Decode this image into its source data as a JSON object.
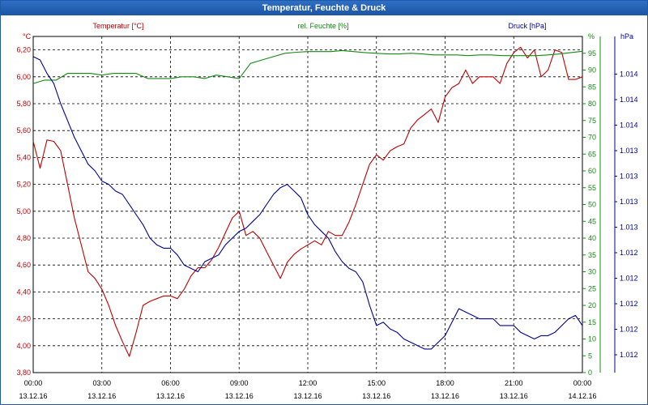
{
  "window": {
    "title": "Temperatur, Feuchte & Druck"
  },
  "colors": {
    "temp": "#c00000",
    "hum": "#138a13",
    "press": "#00009a",
    "title_bg": "#1b55a6",
    "axis": "#000000"
  },
  "chart_data": {
    "type": "line",
    "title": "Temperatur, Feuchte & Druck",
    "x_ticks": [
      {
        "time": "00:00",
        "date": "13.12.16"
      },
      {
        "time": "03:00",
        "date": "13.12.16"
      },
      {
        "time": "06:00",
        "date": "13.12.16"
      },
      {
        "time": "09:00",
        "date": "13.12.16"
      },
      {
        "time": "12:00",
        "date": "13.12.16"
      },
      {
        "time": "15:00",
        "date": "13.12.16"
      },
      {
        "time": "18:00",
        "date": "13.12.16"
      },
      {
        "time": "21:00",
        "date": "13.12.16"
      },
      {
        "time": "00:00",
        "date": "14.12.16"
      }
    ],
    "xlim_hours": [
      0,
      24
    ],
    "axes": {
      "temp": {
        "label": "Temperatur [°C]",
        "unit": "°C",
        "ylim": [
          3.8,
          6.3
        ],
        "ticks": [
          "3,80",
          "4,00",
          "4,20",
          "4,40",
          "4,60",
          "4,80",
          "5,00",
          "5,20",
          "5,40",
          "5,60",
          "5,80",
          "6,00",
          "6,20"
        ]
      },
      "hum": {
        "label": "rel. Feuchte [%]",
        "unit": "%",
        "ylim": [
          0,
          100
        ],
        "ticks": [
          "0",
          "5",
          "10",
          "15",
          "20",
          "25",
          "30",
          "35",
          "40",
          "45",
          "50",
          "55",
          "60",
          "65",
          "70",
          "75",
          "80",
          "85",
          "90",
          "95"
        ]
      },
      "press": {
        "label": "Druck [hPa]",
        "unit": "hPa",
        "ticks": [
          "1.012",
          "1.012",
          "1.012",
          "1.012",
          "1.012",
          "1.013",
          "1.013",
          "1.013",
          "1.013",
          "1.014",
          "1.014",
          "1.014"
        ]
      }
    },
    "series": [
      {
        "name": "Temperatur [°C]",
        "axis": "temp",
        "x": [
          0,
          0.3,
          0.6,
          0.9,
          1.2,
          1.5,
          1.8,
          2.1,
          2.4,
          2.7,
          3.0,
          3.3,
          3.6,
          3.9,
          4.2,
          4.5,
          4.8,
          5.1,
          5.4,
          5.7,
          6.0,
          6.3,
          6.6,
          6.9,
          7.2,
          7.5,
          7.8,
          8.1,
          8.4,
          8.7,
          9.0,
          9.3,
          9.6,
          9.9,
          10.2,
          10.5,
          10.8,
          11.1,
          11.4,
          11.7,
          12.0,
          12.3,
          12.6,
          12.9,
          13.2,
          13.5,
          13.8,
          14.1,
          14.4,
          14.7,
          15.0,
          15.3,
          15.6,
          15.9,
          16.2,
          16.5,
          16.8,
          17.1,
          17.4,
          17.7,
          18.0,
          18.3,
          18.6,
          18.9,
          19.2,
          19.5,
          19.8,
          20.1,
          20.4,
          20.7,
          21.0,
          21.3,
          21.6,
          21.9,
          22.2,
          22.5,
          22.8,
          23.1,
          23.4,
          23.7,
          24.0
        ],
        "values": [
          5.52,
          5.32,
          5.53,
          5.52,
          5.45,
          5.2,
          4.95,
          4.75,
          4.55,
          4.5,
          4.42,
          4.3,
          4.15,
          4.03,
          3.92,
          4.1,
          4.3,
          4.33,
          4.35,
          4.37,
          4.37,
          4.35,
          4.42,
          4.52,
          4.58,
          4.58,
          4.64,
          4.73,
          4.84,
          4.95,
          5.0,
          4.82,
          4.85,
          4.8,
          4.7,
          4.6,
          4.5,
          4.62,
          4.68,
          4.72,
          4.75,
          4.78,
          4.75,
          4.85,
          4.82,
          4.82,
          4.92,
          5.05,
          5.2,
          5.35,
          5.42,
          5.38,
          5.45,
          5.48,
          5.5,
          5.62,
          5.68,
          5.72,
          5.76,
          5.66,
          5.85,
          5.92,
          5.95,
          6.05,
          5.95,
          6.0,
          6.0,
          6.0,
          5.95,
          6.1,
          6.18,
          6.22,
          6.14,
          6.2,
          6.0,
          6.05,
          6.2,
          6.18,
          5.98,
          5.98,
          6.0
        ],
        "color_key": "temp"
      },
      {
        "name": "rel. Feuchte [%]",
        "axis": "hum",
        "x": [
          0,
          0.5,
          1.0,
          1.5,
          2.0,
          2.5,
          3.0,
          3.5,
          4.0,
          4.5,
          5.0,
          5.5,
          6.0,
          6.5,
          7.0,
          7.5,
          8.0,
          8.5,
          9.0,
          9.5,
          10.0,
          10.5,
          11.0,
          11.5,
          12.0,
          12.5,
          13.0,
          13.5,
          14.0,
          14.5,
          15.0,
          15.5,
          16.0,
          16.5,
          17.0,
          17.5,
          18.0,
          18.5,
          19.0,
          19.5,
          20.0,
          20.5,
          21.0,
          21.5,
          22.0,
          22.5,
          23.0,
          23.5,
          24.0
        ],
        "values": [
          86,
          87,
          87,
          89,
          89,
          89,
          88.5,
          89,
          89,
          89,
          87.5,
          87.5,
          87.5,
          88,
          88,
          87.5,
          88.5,
          88,
          87.5,
          92,
          93,
          94,
          95,
          95.3,
          95.5,
          95.5,
          95.5,
          95.8,
          95.5,
          95.2,
          95,
          94.8,
          94.8,
          95,
          94.8,
          94.5,
          94.5,
          94.5,
          94.3,
          94.5,
          94.5,
          94.3,
          94.3,
          94.3,
          94.3,
          94.5,
          94.8,
          95.2,
          95.6
        ],
        "color_key": "hum"
      },
      {
        "name": "Druck [hPa]",
        "axis": "press",
        "x": [
          0,
          0.3,
          0.6,
          0.9,
          1.2,
          1.5,
          1.8,
          2.1,
          2.4,
          2.7,
          3.0,
          3.3,
          3.6,
          3.9,
          4.2,
          4.5,
          4.8,
          5.1,
          5.4,
          5.7,
          6.0,
          6.3,
          6.6,
          6.9,
          7.2,
          7.5,
          7.8,
          8.1,
          8.4,
          8.7,
          9.0,
          9.3,
          9.6,
          9.9,
          10.2,
          10.5,
          10.8,
          11.1,
          11.4,
          11.7,
          12.0,
          12.3,
          12.6,
          12.9,
          13.2,
          13.5,
          13.8,
          14.1,
          14.4,
          14.7,
          15.0,
          15.3,
          15.6,
          15.9,
          16.2,
          16.5,
          16.8,
          17.1,
          17.4,
          17.7,
          18.0,
          18.3,
          18.6,
          18.9,
          19.2,
          19.5,
          19.8,
          20.1,
          20.4,
          20.7,
          21.0,
          21.3,
          21.6,
          21.9,
          22.2,
          22.5,
          22.8,
          23.1,
          23.4,
          23.7,
          24.0
        ],
        "values": [
          94,
          93,
          89,
          86,
          80,
          75,
          70,
          66,
          62,
          60,
          57,
          56,
          54,
          53,
          50,
          47,
          44,
          40,
          38,
          37,
          37,
          35,
          32,
          31,
          30,
          33,
          34,
          35,
          38,
          40,
          42,
          43,
          45,
          47,
          50,
          53,
          55,
          56,
          54,
          52,
          47,
          44,
          42,
          40,
          36,
          33,
          31,
          30,
          27,
          20,
          14,
          15,
          13,
          12,
          10,
          9,
          8,
          7,
          7,
          9,
          11,
          15,
          19,
          18,
          17,
          16,
          16,
          16,
          14,
          14,
          14,
          12,
          11,
          10,
          11,
          11,
          12,
          14,
          16,
          17,
          14
        ],
        "color_key": "press"
      }
    ]
  }
}
